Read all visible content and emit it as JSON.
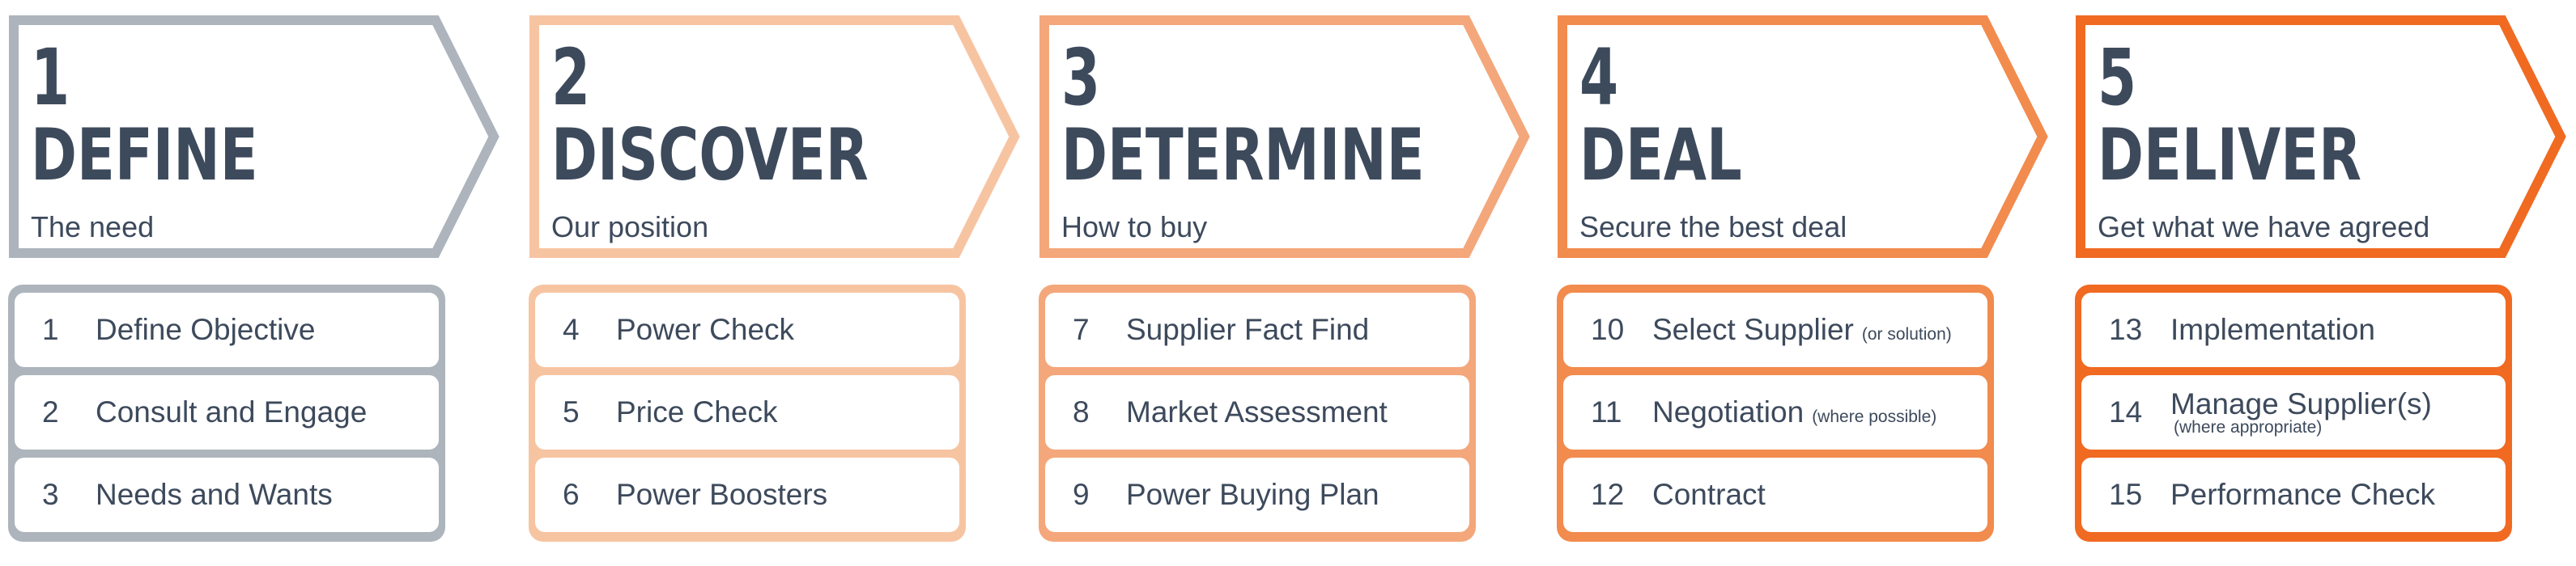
{
  "stages": [
    {
      "num": "1",
      "title": "DEFINE",
      "subtitle": "The need",
      "color": "#adb4bc",
      "items": [
        {
          "num": "1",
          "label": "Define Objective",
          "note": ""
        },
        {
          "num": "2",
          "label": "Consult and Engage",
          "note": ""
        },
        {
          "num": "3",
          "label": "Needs and Wants",
          "note": ""
        }
      ]
    },
    {
      "num": "2",
      "title": "DISCOVER",
      "subtitle": "Our position",
      "color": "#f7c4a2",
      "items": [
        {
          "num": "4",
          "label": "Power Check",
          "note": ""
        },
        {
          "num": "5",
          "label": "Price Check",
          "note": ""
        },
        {
          "num": "6",
          "label": "Power Boosters",
          "note": ""
        }
      ]
    },
    {
      "num": "3",
      "title": "DETERMINE",
      "subtitle": "How to buy",
      "color": "#f4a77b",
      "items": [
        {
          "num": "7",
          "label": "Supplier Fact Find",
          "note": ""
        },
        {
          "num": "8",
          "label": "Market Assessment",
          "note": ""
        },
        {
          "num": "9",
          "label": "Power Buying Plan",
          "note": ""
        }
      ]
    },
    {
      "num": "4",
      "title": "DEAL",
      "subtitle": "Secure the best deal",
      "color": "#f28b4e",
      "items": [
        {
          "num": "10",
          "label": "Select Supplier",
          "note": "(or solution)"
        },
        {
          "num": "11",
          "label": "Negotiation",
          "note": "(where possible)"
        },
        {
          "num": "12",
          "label": "Contract",
          "note": ""
        }
      ]
    },
    {
      "num": "5",
      "title": "DELIVER",
      "subtitle": "Get what we have agreed",
      "color": "#f06a22",
      "items": [
        {
          "num": "13",
          "label": "Implementation",
          "note": ""
        },
        {
          "num": "14",
          "label": "Manage Supplier(s)",
          "note": "(where appropriate)"
        },
        {
          "num": "15",
          "label": "Performance Check",
          "note": ""
        }
      ]
    }
  ]
}
